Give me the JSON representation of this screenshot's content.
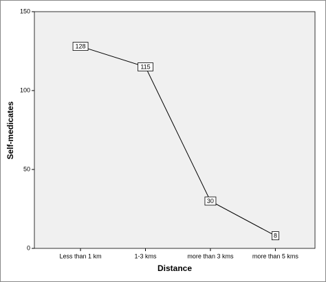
{
  "chart_data": {
    "type": "line",
    "x_label": "Distance",
    "y_label": "Self-medicates",
    "categories": [
      "Less than 1 km",
      "1-3 kms",
      "more than 3 kms",
      "more than 5 kms"
    ],
    "values": [
      128,
      115,
      30,
      8
    ],
    "color": "#000000",
    "ylim": [
      0,
      150
    ],
    "yticks": [
      0,
      50,
      100,
      150
    ],
    "grid": false
  }
}
